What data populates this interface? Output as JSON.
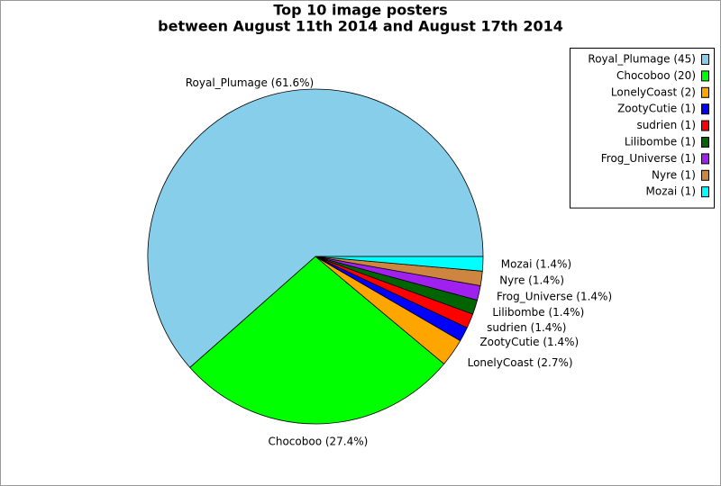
{
  "chart_data": {
    "type": "pie",
    "title": "Top 10 image posters",
    "subtitle": "between August 11th 2014 and August 17th 2014",
    "categories": [
      "Royal_Plumage",
      "Chocoboo",
      "LonelyCoast",
      "ZootyCutie",
      "sudrien",
      "Lilibombe",
      "Frog_Universe",
      "Nyre",
      "Mozai"
    ],
    "values": [
      61.6,
      27.4,
      2.7,
      1.4,
      1.4,
      1.4,
      1.4,
      1.4,
      1.4
    ],
    "value_labels": [
      "Royal_Plumage (61.6%)",
      "Chocoboo (27.4%)",
      "LonelyCoast (2.7%)",
      "ZootyCutie (1.4%)",
      "sudrien (1.4%)",
      "Lilibombe (1.4%)",
      "Frog_Universe (1.4%)",
      "Nyre (1.4%)",
      "Mozai (1.4%)"
    ],
    "legend_labels": [
      "Royal_Plumage (45)",
      "Chocoboo (20)",
      "LonelyCoast (2)",
      "ZootyCutie (1)",
      "sudrien (1)",
      "Lilibombe (1)",
      "Frog_Universe (1)",
      "Nyre (1)",
      "Mozai (1)"
    ],
    "colors": [
      "#87ceeb",
      "#00ff00",
      "#ffa500",
      "#0000ff",
      "#ff0000",
      "#006400",
      "#a020f0",
      "#cd853f",
      "#00ffff"
    ],
    "legend": "upper right"
  }
}
